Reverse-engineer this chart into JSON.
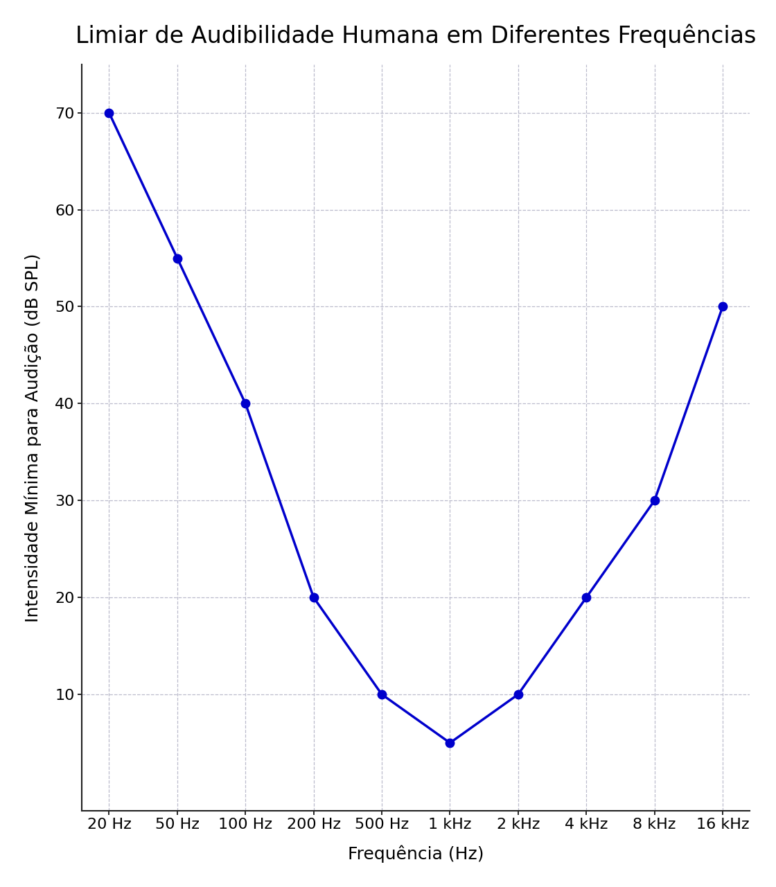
{
  "title": "Limiar de Audibilidade Humana em Diferentes Frequências",
  "xlabel": "Frequência (Hz)",
  "ylabel": "Intensidade Mínima para Audição (dB SPL)",
  "x_labels": [
    "20 Hz",
    "50 Hz",
    "100 Hz",
    "200 Hz",
    "500 Hz",
    "1 kHz",
    "2 kHz",
    "4 kHz",
    "8 kHz",
    "16 kHz"
  ],
  "x_values": [
    0,
    1,
    2,
    3,
    4,
    5,
    6,
    7,
    8,
    9
  ],
  "y_values": [
    70,
    55,
    40,
    20,
    10,
    5,
    10,
    20,
    30,
    50
  ],
  "line_color": "#0000CC",
  "marker_color": "#0000CC",
  "background_color": "#FFFFFF",
  "grid_color": "#BBBBCC",
  "title_fontsize": 24,
  "label_fontsize": 18,
  "tick_fontsize": 16,
  "ylim": [
    -2,
    75
  ],
  "yticks": [
    10,
    20,
    30,
    40,
    50,
    60,
    70
  ],
  "line_width": 2.5,
  "marker_size": 9,
  "spine_color": "#222222"
}
